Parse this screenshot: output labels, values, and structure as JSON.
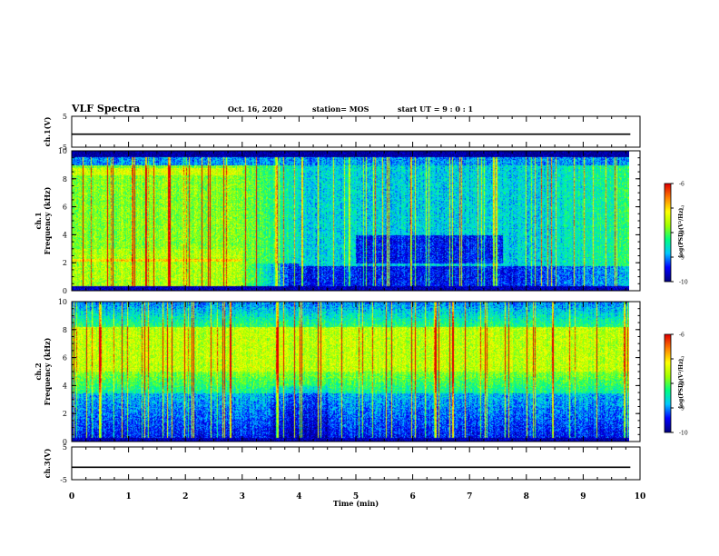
{
  "header": {
    "title": "VLF Spectra",
    "date": "Oct. 16, 2020",
    "station": "station= MOS",
    "start_ut": "start UT =  9 : 0  : 1"
  },
  "chart_data": [
    {
      "type": "line",
      "panel": "ch1-voltage",
      "ylabel": "ch.1(V)",
      "ylim": [
        -5,
        5
      ],
      "yticks": [
        "5",
        "-5"
      ],
      "series": [
        {
          "x": [
            0,
            9.83
          ],
          "values": [
            -0.8,
            -0.8
          ]
        }
      ]
    },
    {
      "type": "heatmap",
      "panel": "ch1-spectrogram",
      "ylabel": "ch.1\nFrequency (kHz)",
      "ylim": [
        0,
        10
      ],
      "yticks": [
        "0",
        "2",
        "4",
        "6",
        "8",
        "10"
      ],
      "colorbar": {
        "label": "log(PSD)(V²/Hz)",
        "range": [
          -10,
          -6
        ],
        "ticks": [
          "-6",
          "-7",
          "-8",
          "-9",
          "-10"
        ]
      }
    },
    {
      "type": "heatmap",
      "panel": "ch2-spectrogram",
      "ylabel": "ch.2\nFrequency (kHz)",
      "ylim": [
        0,
        10
      ],
      "yticks": [
        "0",
        "2",
        "4",
        "6",
        "8",
        "10"
      ],
      "colorbar": {
        "label": "log(PSD)(V²/Hz)",
        "range": [
          -10,
          -6
        ],
        "ticks": [
          "-6",
          "-7",
          "-8",
          "-9",
          "-10"
        ]
      }
    },
    {
      "type": "line",
      "panel": "ch3-voltage",
      "ylabel": "ch.3(V)",
      "ylim": [
        -5,
        5
      ],
      "yticks": [
        "5",
        "-5"
      ],
      "series": [
        {
          "x": [
            0,
            9.83
          ],
          "values": [
            -1.2,
            -1.2
          ]
        }
      ]
    }
  ],
  "x_axis": {
    "label": "Time  (min)",
    "xlim": [
      0,
      10
    ],
    "ticks": [
      "0",
      "1",
      "2",
      "3",
      "4",
      "5",
      "6",
      "7",
      "8",
      "9",
      "10"
    ]
  },
  "colors": {
    "colormap": [
      "#000080",
      "#0000ff",
      "#00c8ff",
      "#00ff80",
      "#a0ff00",
      "#ffff00",
      "#ff8000",
      "#e00000",
      "#ffffff"
    ],
    "axis": "#000000"
  }
}
